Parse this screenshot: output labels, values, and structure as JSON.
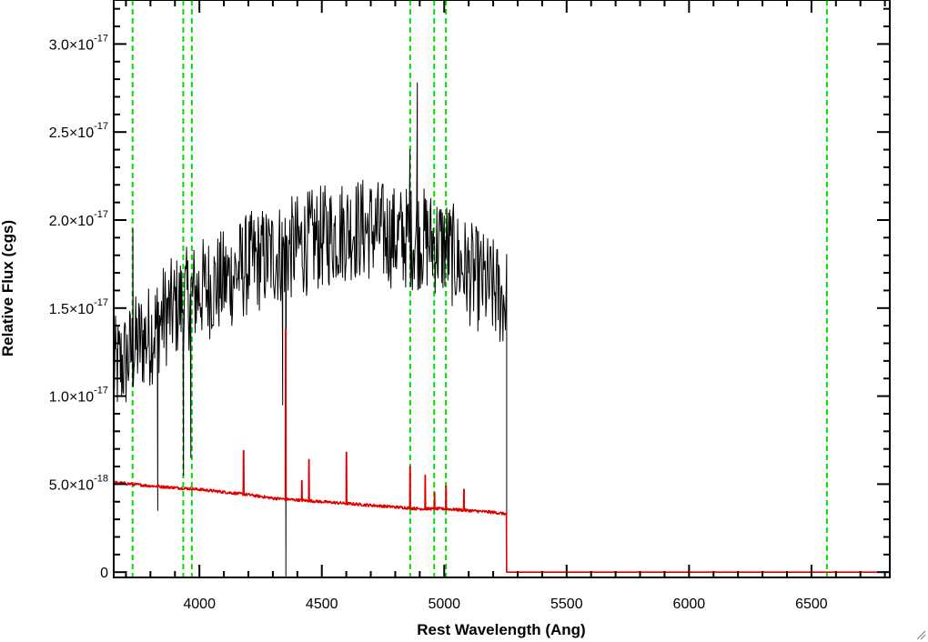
{
  "chart_data": {
    "type": "line",
    "xlabel": "Rest Wavelength (Ang)",
    "ylabel": "Relative Flux (cgs)",
    "xlim": [
      3650,
      6820
    ],
    "ylim": [
      -3e-19,
      3.25e-17
    ],
    "x_ticks": [
      {
        "value": 4000,
        "label": "4000"
      },
      {
        "value": 4500,
        "label": "4500"
      },
      {
        "value": 5000,
        "label": "5000"
      },
      {
        "value": 5500,
        "label": "5500"
      },
      {
        "value": 6000,
        "label": "6000"
      },
      {
        "value": 6500,
        "label": "6500"
      }
    ],
    "x_minor_step": 100,
    "y_ticks": [
      {
        "value": 0,
        "mantissa": "0",
        "exponent": ""
      },
      {
        "value": 5e-18,
        "mantissa": "5.0×10",
        "exponent": "-18"
      },
      {
        "value": 1e-17,
        "mantissa": "1.0×10",
        "exponent": "-17"
      },
      {
        "value": 1.5e-17,
        "mantissa": "1.5×10",
        "exponent": "-17"
      },
      {
        "value": 2e-17,
        "mantissa": "2.0×10",
        "exponent": "-17"
      },
      {
        "value": 2.5e-17,
        "mantissa": "2.5×10",
        "exponent": "-17"
      },
      {
        "value": 3e-17,
        "mantissa": "3.0×10",
        "exponent": "-17"
      }
    ],
    "y_minor_step": 1e-18,
    "vlines": {
      "color": "#00dd00",
      "style": "dashed",
      "x": [
        3727,
        3934,
        3969,
        4861,
        4959,
        5007,
        6563
      ]
    },
    "series": [
      {
        "color": "#000000",
        "style": "noisy",
        "x": [
          3650,
          3700,
          3750,
          3800,
          3850,
          3900,
          3950,
          4000,
          4100,
          4200,
          4300,
          4400,
          4500,
          4600,
          4700,
          4800,
          4900,
          5000,
          5100,
          5200,
          5250
        ],
        "y": [
          1.15e-17,
          1.2e-17,
          1.3e-17,
          1.35e-17,
          1.45e-17,
          1.5e-17,
          1.55e-17,
          1.6e-17,
          1.65e-17,
          1.75e-17,
          1.8e-17,
          1.85e-17,
          1.9e-17,
          1.95e-17,
          1.95e-17,
          1.9e-17,
          1.9e-17,
          1.85e-17,
          1.7e-17,
          1.6e-17,
          1.55e-17
        ],
        "noise": 3e-18,
        "spikes": [
          {
            "x": 3728,
            "y": 1.95e-17
          },
          {
            "x": 3830,
            "y": 3.5e-18
          },
          {
            "x": 3935,
            "y": 5.5e-18
          },
          {
            "x": 3965,
            "y": 6.5e-18
          },
          {
            "x": 4340,
            "y": 9.5e-18
          },
          {
            "x": 4353,
            "y": -3e-19
          },
          {
            "x": 4890,
            "y": 2.78e-17
          },
          {
            "x": 4860,
            "y": 2.4e-17
          }
        ],
        "end_x": 5255,
        "end_y": 0
      },
      {
        "color": "#e00000",
        "style": "smooth",
        "x": [
          3650,
          3800,
          4000,
          4200,
          4300,
          4400,
          4500,
          4600,
          4700,
          4800,
          4900,
          5000,
          5100,
          5200,
          5255
        ],
        "y": [
          5.1e-18,
          4.9e-18,
          4.7e-18,
          4.4e-18,
          4.2e-18,
          4.1e-18,
          4e-18,
          3.9e-18,
          3.8e-18,
          3.7e-18,
          3.6e-18,
          3.6e-18,
          3.5e-18,
          3.4e-18,
          3.3e-18
        ],
        "noise": 8e-20,
        "lines": [
          {
            "x": 4180,
            "y": 6.9e-18
          },
          {
            "x": 4352,
            "y": 1.38e-17
          },
          {
            "x": 4418,
            "y": 5.2e-18
          },
          {
            "x": 4447,
            "y": 6.4e-18
          },
          {
            "x": 4600,
            "y": 6.8e-18
          },
          {
            "x": 4860,
            "y": 6e-18
          },
          {
            "x": 4922,
            "y": 5.5e-18
          },
          {
            "x": 4960,
            "y": 4.5e-18
          },
          {
            "x": 5007,
            "y": 4.9e-18
          },
          {
            "x": 5080,
            "y": 4.7e-18
          }
        ],
        "end_x": 5255,
        "tail_x": 6820,
        "tail_y": 0
      }
    ]
  }
}
